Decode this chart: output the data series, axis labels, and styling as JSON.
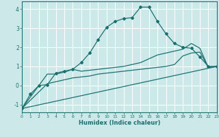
{
  "xlabel": "Humidex (Indice chaleur)",
  "bg_color": "#cce8e8",
  "grid_color": "#ffffff",
  "line_color": "#1a7070",
  "xlim": [
    0,
    23
  ],
  "ylim": [
    -1.4,
    4.4
  ],
  "xticks": [
    0,
    1,
    2,
    3,
    4,
    5,
    6,
    7,
    8,
    9,
    10,
    11,
    12,
    13,
    14,
    15,
    16,
    17,
    18,
    19,
    20,
    21,
    22,
    23
  ],
  "yticks": [
    -1,
    0,
    1,
    2,
    3,
    4
  ],
  "curve1_x": [
    0,
    1,
    2,
    3,
    4,
    5,
    6,
    7,
    8,
    9,
    10,
    11,
    12,
    13,
    14,
    15,
    16,
    17,
    18,
    19,
    20,
    21,
    22,
    23
  ],
  "curve1_y": [
    -1.2,
    -0.45,
    0.0,
    0.05,
    0.65,
    0.75,
    0.85,
    1.2,
    1.7,
    2.4,
    3.05,
    3.35,
    3.5,
    3.55,
    4.1,
    4.1,
    3.35,
    2.7,
    2.2,
    2.0,
    1.95,
    1.5,
    1.0,
    1.0
  ],
  "curve2_x": [
    0,
    23
  ],
  "curve2_y": [
    -1.2,
    1.0
  ],
  "curve3_x": [
    0,
    3,
    4,
    5,
    6,
    7,
    8,
    9,
    10,
    11,
    12,
    13,
    14,
    15,
    16,
    17,
    18,
    19,
    20,
    21,
    22,
    23
  ],
  "curve3_y": [
    -1.2,
    0.6,
    0.6,
    0.7,
    0.85,
    0.75,
    0.8,
    0.85,
    0.9,
    0.95,
    1.0,
    1.1,
    1.2,
    1.4,
    1.6,
    1.7,
    1.8,
    1.9,
    2.2,
    1.95,
    0.95,
    1.0
  ],
  "curve4_x": [
    0,
    3,
    4,
    5,
    6,
    7,
    8,
    9,
    10,
    11,
    12,
    13,
    14,
    15,
    16,
    17,
    18,
    19,
    20,
    21,
    22,
    23
  ],
  "curve4_y": [
    -1.2,
    0.1,
    0.2,
    0.3,
    0.4,
    0.45,
    0.5,
    0.6,
    0.65,
    0.7,
    0.75,
    0.8,
    0.85,
    0.9,
    0.95,
    1.0,
    1.1,
    1.55,
    1.7,
    1.75,
    0.95,
    1.0
  ]
}
